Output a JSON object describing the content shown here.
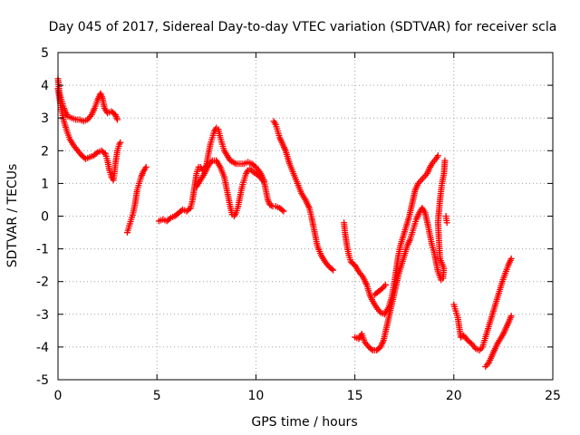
{
  "chart_data": {
    "type": "scatter",
    "title": "Day 045 of 2017, Sidereal Day-to-day VTEC variation (SDTVAR) for receiver scla",
    "xlabel": "GPS time / hours",
    "ylabel": "SDTVAR / TECUs",
    "xlim": [
      0,
      25
    ],
    "ylim": [
      -5,
      5
    ],
    "x_ticks": [
      0,
      5,
      10,
      15,
      20,
      25
    ],
    "y_ticks": [
      -5,
      -4,
      -3,
      -2,
      -1,
      0,
      1,
      2,
      3,
      4,
      5
    ],
    "grid": true,
    "marker": "plus",
    "series_color": "#ff0000",
    "series": [
      {
        "points": [
          [
            0.0,
            4.2
          ],
          [
            0.05,
            3.9
          ],
          [
            0.1,
            3.7
          ],
          [
            0.2,
            3.5
          ],
          [
            0.3,
            3.3
          ],
          [
            0.4,
            3.15
          ],
          [
            0.5,
            3.05
          ],
          [
            0.7,
            3.0
          ],
          [
            0.9,
            2.95
          ],
          [
            1.1,
            2.95
          ],
          [
            1.3,
            2.9
          ],
          [
            1.5,
            2.95
          ],
          [
            1.7,
            3.1
          ],
          [
            1.85,
            3.3
          ],
          [
            2.0,
            3.55
          ],
          [
            2.15,
            3.75
          ],
          [
            2.25,
            3.6
          ],
          [
            2.35,
            3.3
          ],
          [
            2.5,
            3.15
          ],
          [
            2.7,
            3.2
          ],
          [
            2.9,
            3.1
          ],
          [
            3.0,
            2.95
          ]
        ]
      },
      {
        "points": [
          [
            0.0,
            3.9
          ],
          [
            0.1,
            3.5
          ],
          [
            0.2,
            3.2
          ],
          [
            0.3,
            2.9
          ],
          [
            0.45,
            2.6
          ],
          [
            0.6,
            2.35
          ],
          [
            0.8,
            2.15
          ],
          [
            1.0,
            2.0
          ],
          [
            1.2,
            1.85
          ],
          [
            1.4,
            1.75
          ],
          [
            1.6,
            1.8
          ],
          [
            1.8,
            1.85
          ],
          [
            2.0,
            1.95
          ],
          [
            2.2,
            2.0
          ],
          [
            2.4,
            1.9
          ],
          [
            2.5,
            1.7
          ],
          [
            2.6,
            1.4
          ],
          [
            2.7,
            1.2
          ],
          [
            2.8,
            1.1
          ],
          [
            2.85,
            1.3
          ],
          [
            2.9,
            1.6
          ],
          [
            3.0,
            2.0
          ],
          [
            3.1,
            2.2
          ],
          [
            3.15,
            2.25
          ]
        ]
      },
      {
        "points": [
          [
            3.5,
            -0.5
          ],
          [
            3.6,
            -0.3
          ],
          [
            3.7,
            -0.1
          ],
          [
            3.8,
            0.1
          ],
          [
            3.9,
            0.4
          ],
          [
            4.0,
            0.8
          ],
          [
            4.1,
            1.0
          ],
          [
            4.2,
            1.2
          ],
          [
            4.3,
            1.35
          ],
          [
            4.45,
            1.5
          ]
        ]
      },
      {
        "points": [
          [
            5.1,
            -0.15
          ],
          [
            5.3,
            -0.1
          ],
          [
            5.5,
            -0.15
          ],
          [
            5.7,
            -0.05
          ],
          [
            5.9,
            0.0
          ],
          [
            6.1,
            0.1
          ],
          [
            6.3,
            0.2
          ],
          [
            6.5,
            0.15
          ],
          [
            6.7,
            0.25
          ],
          [
            6.8,
            0.5
          ],
          [
            6.9,
            0.9
          ],
          [
            7.0,
            1.3
          ],
          [
            7.1,
            1.5
          ],
          [
            7.2,
            1.5
          ],
          [
            7.3,
            1.4
          ],
          [
            7.5,
            1.55
          ],
          [
            7.6,
            1.9
          ],
          [
            7.7,
            2.2
          ],
          [
            7.8,
            2.4
          ],
          [
            7.9,
            2.6
          ],
          [
            8.0,
            2.7
          ],
          [
            8.1,
            2.65
          ],
          [
            8.2,
            2.4
          ],
          [
            8.3,
            2.2
          ],
          [
            8.4,
            2.0
          ],
          [
            8.5,
            1.9
          ],
          [
            8.6,
            1.8
          ],
          [
            8.7,
            1.7
          ],
          [
            8.85,
            1.65
          ],
          [
            9.0,
            1.6
          ],
          [
            9.2,
            1.6
          ],
          [
            9.4,
            1.6
          ],
          [
            9.6,
            1.65
          ],
          [
            9.8,
            1.6
          ],
          [
            10.0,
            1.5
          ],
          [
            10.2,
            1.35
          ],
          [
            10.4,
            1.1
          ],
          [
            10.5,
            0.8
          ],
          [
            10.6,
            0.5
          ],
          [
            10.7,
            0.35
          ],
          [
            10.85,
            0.3
          ],
          [
            11.0,
            0.3
          ],
          [
            11.2,
            0.25
          ],
          [
            11.4,
            0.15
          ]
        ]
      },
      {
        "points": [
          [
            7.0,
            0.9
          ],
          [
            7.2,
            1.1
          ],
          [
            7.4,
            1.3
          ],
          [
            7.6,
            1.55
          ],
          [
            7.8,
            1.7
          ],
          [
            8.0,
            1.7
          ],
          [
            8.2,
            1.5
          ],
          [
            8.4,
            1.2
          ],
          [
            8.5,
            0.9
          ],
          [
            8.6,
            0.6
          ],
          [
            8.7,
            0.3
          ],
          [
            8.8,
            0.05
          ],
          [
            8.9,
            0.0
          ],
          [
            9.0,
            0.1
          ],
          [
            9.1,
            0.3
          ],
          [
            9.2,
            0.6
          ],
          [
            9.3,
            0.9
          ],
          [
            9.4,
            1.1
          ],
          [
            9.5,
            1.3
          ],
          [
            9.6,
            1.4
          ],
          [
            9.7,
            1.45
          ],
          [
            9.85,
            1.35
          ],
          [
            10.0,
            1.3
          ],
          [
            10.2,
            1.2
          ],
          [
            10.4,
            1.05
          ]
        ]
      },
      {
        "points": [
          [
            10.9,
            2.9
          ],
          [
            11.0,
            2.8
          ],
          [
            11.1,
            2.6
          ],
          [
            11.2,
            2.4
          ],
          [
            11.35,
            2.2
          ],
          [
            11.5,
            2.0
          ],
          [
            11.7,
            1.6
          ],
          [
            11.9,
            1.3
          ],
          [
            12.1,
            1.0
          ],
          [
            12.3,
            0.7
          ],
          [
            12.5,
            0.5
          ],
          [
            12.7,
            0.25
          ],
          [
            12.8,
            0.0
          ],
          [
            12.9,
            -0.3
          ],
          [
            13.0,
            -0.6
          ],
          [
            13.1,
            -0.9
          ],
          [
            13.3,
            -1.2
          ],
          [
            13.5,
            -1.4
          ],
          [
            13.7,
            -1.55
          ],
          [
            13.9,
            -1.65
          ]
        ]
      },
      {
        "points": [
          [
            14.45,
            -0.2
          ],
          [
            14.5,
            -0.5
          ],
          [
            14.6,
            -0.9
          ],
          [
            14.7,
            -1.2
          ],
          [
            14.8,
            -1.4
          ],
          [
            15.0,
            -1.5
          ],
          [
            15.2,
            -1.7
          ],
          [
            15.4,
            -1.85
          ],
          [
            15.6,
            -2.1
          ],
          [
            15.75,
            -2.4
          ],
          [
            15.9,
            -2.6
          ],
          [
            16.1,
            -2.8
          ],
          [
            16.3,
            -2.95
          ],
          [
            16.5,
            -3.0
          ],
          [
            16.7,
            -2.8
          ],
          [
            16.85,
            -2.5
          ],
          [
            17.0,
            -2.0
          ],
          [
            17.1,
            -1.6
          ],
          [
            17.2,
            -1.2
          ],
          [
            17.3,
            -0.9
          ],
          [
            17.45,
            -0.6
          ],
          [
            17.6,
            -0.3
          ],
          [
            17.75,
            0.0
          ],
          [
            17.9,
            0.4
          ],
          [
            18.05,
            0.8
          ],
          [
            18.2,
            1.0
          ],
          [
            18.35,
            1.1
          ],
          [
            18.5,
            1.2
          ],
          [
            18.65,
            1.3
          ],
          [
            18.8,
            1.5
          ],
          [
            18.95,
            1.65
          ],
          [
            19.1,
            1.75
          ],
          [
            19.2,
            1.85
          ]
        ]
      },
      {
        "points": [
          [
            15.0,
            -3.7
          ],
          [
            15.2,
            -3.75
          ],
          [
            15.35,
            -3.6
          ],
          [
            15.5,
            -3.85
          ],
          [
            15.7,
            -4.0
          ],
          [
            15.9,
            -4.1
          ],
          [
            16.1,
            -4.1
          ],
          [
            16.3,
            -4.0
          ],
          [
            16.45,
            -3.8
          ],
          [
            16.6,
            -3.4
          ],
          [
            16.75,
            -3.0
          ],
          [
            16.9,
            -2.6
          ],
          [
            17.05,
            -2.2
          ],
          [
            17.2,
            -1.8
          ],
          [
            17.35,
            -1.5
          ],
          [
            17.5,
            -1.2
          ],
          [
            17.65,
            -0.9
          ],
          [
            17.8,
            -0.7
          ],
          [
            17.9,
            -0.5
          ],
          [
            18.0,
            -0.3
          ],
          [
            18.1,
            -0.1
          ],
          [
            18.25,
            0.1
          ],
          [
            18.4,
            0.25
          ],
          [
            18.55,
            0.1
          ],
          [
            18.7,
            -0.3
          ],
          [
            18.8,
            -0.6
          ],
          [
            18.9,
            -0.9
          ],
          [
            19.0,
            -1.1
          ],
          [
            19.1,
            -1.4
          ],
          [
            19.2,
            -1.7
          ],
          [
            19.35,
            -1.95
          ],
          [
            19.45,
            -1.9
          ],
          [
            19.5,
            -1.6
          ],
          [
            19.3,
            -1.3
          ],
          [
            19.2,
            -0.2
          ],
          [
            19.3,
            0.5
          ],
          [
            19.4,
            1.0
          ],
          [
            19.5,
            1.3
          ],
          [
            19.55,
            1.7
          ]
        ]
      },
      {
        "points": [
          [
            16.0,
            -2.4
          ],
          [
            16.2,
            -2.3
          ],
          [
            16.4,
            -2.2
          ],
          [
            16.55,
            -2.1
          ]
        ]
      },
      {
        "points": [
          [
            19.6,
            0.0
          ],
          [
            19.65,
            -0.2
          ]
        ]
      },
      {
        "points": [
          [
            20.0,
            -2.7
          ],
          [
            20.1,
            -2.9
          ],
          [
            20.2,
            -3.1
          ],
          [
            20.35,
            -3.7
          ],
          [
            20.5,
            -3.65
          ],
          [
            20.7,
            -3.8
          ],
          [
            20.9,
            -3.9
          ],
          [
            21.1,
            -4.05
          ],
          [
            21.3,
            -4.1
          ],
          [
            21.45,
            -4.0
          ],
          [
            21.55,
            -3.8
          ],
          [
            21.7,
            -3.5
          ],
          [
            21.85,
            -3.2
          ],
          [
            22.0,
            -2.9
          ],
          [
            22.15,
            -2.6
          ],
          [
            22.3,
            -2.3
          ],
          [
            22.45,
            -2.0
          ],
          [
            22.6,
            -1.75
          ],
          [
            22.75,
            -1.5
          ],
          [
            22.9,
            -1.3
          ]
        ]
      },
      {
        "points": [
          [
            21.6,
            -4.6
          ],
          [
            21.75,
            -4.5
          ],
          [
            21.9,
            -4.3
          ],
          [
            22.05,
            -4.1
          ],
          [
            22.2,
            -3.9
          ],
          [
            22.35,
            -3.75
          ],
          [
            22.5,
            -3.6
          ],
          [
            22.65,
            -3.4
          ],
          [
            22.8,
            -3.2
          ],
          [
            22.9,
            -3.05
          ]
        ]
      }
    ]
  }
}
